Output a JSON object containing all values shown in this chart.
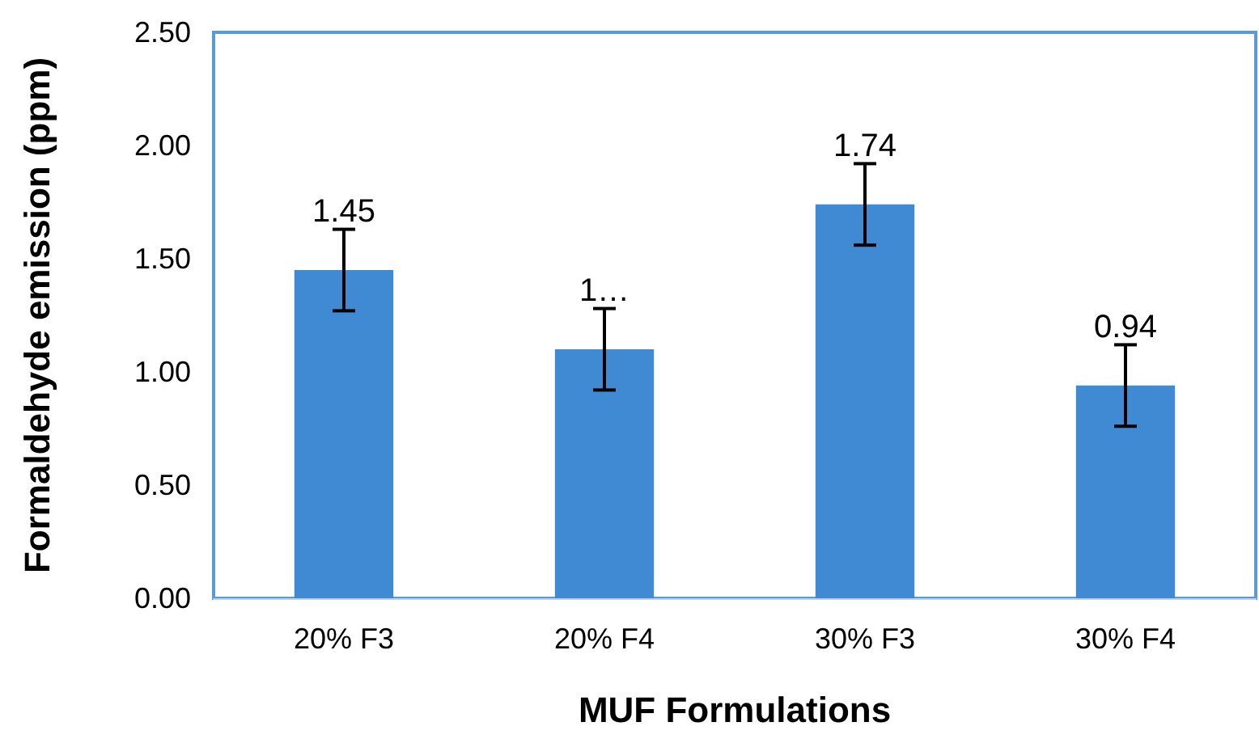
{
  "chart_data": {
    "type": "bar",
    "xlabel": "MUF Formulations",
    "ylabel": "Formaldehyde emission (ppm)",
    "categories": [
      "20% F3",
      "20% F4",
      "30% F3",
      "30% F4"
    ],
    "values": [
      1.45,
      1.1,
      1.74,
      0.94
    ],
    "value_labels": [
      "1.45",
      "1…",
      "1.74",
      "0.94"
    ],
    "errors": [
      0.18,
      0.18,
      0.18,
      0.18
    ],
    "color": "#3f8ad3",
    "ylim": [
      0,
      2.5
    ],
    "yticks": [
      {
        "value": 0,
        "label": "0.00"
      },
      {
        "value": 0.5,
        "label": "0.50"
      },
      {
        "value": 1,
        "label": "1.00"
      },
      {
        "value": 1.5,
        "label": "1.50"
      },
      {
        "value": 2,
        "label": "2.00"
      },
      {
        "value": 2.5,
        "label": "2.50"
      }
    ],
    "grid": false
  }
}
